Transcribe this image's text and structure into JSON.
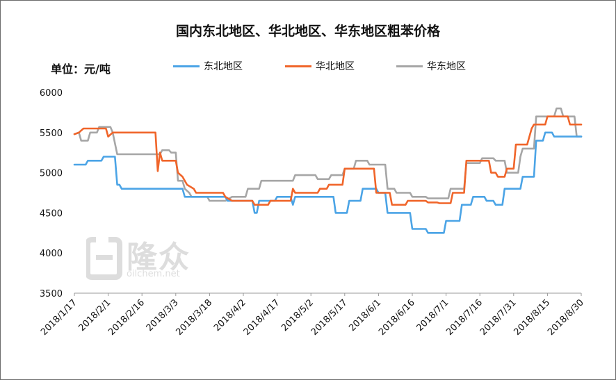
{
  "chart_data": {
    "type": "line",
    "title": "国内东北地区、华北地区、华东地区粗苯价格",
    "unit_label": "单位：元/吨",
    "ylim": [
      3500,
      6000
    ],
    "y_ticks": [
      "6000",
      "5500",
      "5000",
      "4500",
      "4000",
      "3500"
    ],
    "y_tick_values": [
      6000,
      5500,
      5000,
      4500,
      4000,
      3500
    ],
    "grid": false,
    "legend_position": "top",
    "x_start_date": "2018-01-17",
    "x_end_date": "2018-08-30",
    "x_ticks": [
      "2018/1/17",
      "2018/2/1",
      "2018/2/16",
      "2018/3/3",
      "2018/3/18",
      "2018/4/2",
      "2018/4/17",
      "2018/5/2",
      "2018/5/17",
      "2018/6/1",
      "2018/6/16",
      "2018/7/1",
      "2018/7/16",
      "2018/7/31",
      "2018/8/15",
      "2018/8/30"
    ],
    "x_tick_dates": [
      "2018-01-17",
      "2018-02-01",
      "2018-02-16",
      "2018-03-03",
      "2018-03-18",
      "2018-04-02",
      "2018-04-17",
      "2018-05-02",
      "2018-05-17",
      "2018-06-01",
      "2018-06-16",
      "2018-07-01",
      "2018-07-16",
      "2018-07-31",
      "2018-08-15",
      "2018-08-30"
    ],
    "series": [
      {
        "name": "东北地区",
        "color": "#4ba4e6",
        "points": [
          [
            "2018-01-17",
            5100
          ],
          [
            "2018-01-22",
            5100
          ],
          [
            "2018-01-23",
            5150
          ],
          [
            "2018-01-29",
            5150
          ],
          [
            "2018-01-30",
            5200
          ],
          [
            "2018-02-04",
            5200
          ],
          [
            "2018-02-05",
            4850
          ],
          [
            "2018-02-06",
            4850
          ],
          [
            "2018-02-07",
            4800
          ],
          [
            "2018-03-06",
            4800
          ],
          [
            "2018-03-07",
            4700
          ],
          [
            "2018-03-25",
            4700
          ],
          [
            "2018-03-26",
            4650
          ],
          [
            "2018-04-06",
            4650
          ],
          [
            "2018-04-07",
            4500
          ],
          [
            "2018-04-08",
            4500
          ],
          [
            "2018-04-09",
            4650
          ],
          [
            "2018-04-16",
            4650
          ],
          [
            "2018-04-17",
            4700
          ],
          [
            "2018-04-23",
            4700
          ],
          [
            "2018-04-24",
            4600
          ],
          [
            "2018-04-25",
            4700
          ],
          [
            "2018-05-12",
            4700
          ],
          [
            "2018-05-13",
            4500
          ],
          [
            "2018-05-18",
            4500
          ],
          [
            "2018-05-19",
            4650
          ],
          [
            "2018-05-24",
            4650
          ],
          [
            "2018-05-25",
            4800
          ],
          [
            "2018-05-31",
            4800
          ],
          [
            "2018-06-01",
            4750
          ],
          [
            "2018-06-04",
            4750
          ],
          [
            "2018-06-05",
            4500
          ],
          [
            "2018-06-15",
            4500
          ],
          [
            "2018-06-16",
            4300
          ],
          [
            "2018-06-22",
            4300
          ],
          [
            "2018-06-23",
            4250
          ],
          [
            "2018-06-30",
            4250
          ],
          [
            "2018-07-01",
            4400
          ],
          [
            "2018-07-07",
            4400
          ],
          [
            "2018-07-08",
            4600
          ],
          [
            "2018-07-12",
            4600
          ],
          [
            "2018-07-13",
            4700
          ],
          [
            "2018-07-18",
            4700
          ],
          [
            "2018-07-19",
            4650
          ],
          [
            "2018-07-22",
            4650
          ],
          [
            "2018-07-23",
            4600
          ],
          [
            "2018-07-26",
            4600
          ],
          [
            "2018-07-27",
            4800
          ],
          [
            "2018-08-03",
            4800
          ],
          [
            "2018-08-04",
            4950
          ],
          [
            "2018-08-09",
            4950
          ],
          [
            "2018-08-10",
            5400
          ],
          [
            "2018-08-13",
            5400
          ],
          [
            "2018-08-14",
            5500
          ],
          [
            "2018-08-17",
            5500
          ],
          [
            "2018-08-18",
            5450
          ],
          [
            "2018-08-30",
            5450
          ]
        ]
      },
      {
        "name": "华北地区",
        "color": "#f0652a",
        "points": [
          [
            "2018-01-17",
            5480
          ],
          [
            "2018-01-19",
            5500
          ],
          [
            "2018-01-21",
            5550
          ],
          [
            "2018-01-31",
            5550
          ],
          [
            "2018-02-01",
            5450
          ],
          [
            "2018-02-03",
            5500
          ],
          [
            "2018-02-22",
            5500
          ],
          [
            "2018-02-23",
            5020
          ],
          [
            "2018-02-24",
            5250
          ],
          [
            "2018-02-25",
            5150
          ],
          [
            "2018-03-03",
            5150
          ],
          [
            "2018-03-04",
            5000
          ],
          [
            "2018-03-06",
            4950
          ],
          [
            "2018-03-08",
            4850
          ],
          [
            "2018-03-11",
            4800
          ],
          [
            "2018-03-12",
            4750
          ],
          [
            "2018-03-24",
            4750
          ],
          [
            "2018-03-25",
            4700
          ],
          [
            "2018-03-28",
            4650
          ],
          [
            "2018-04-06",
            4650
          ],
          [
            "2018-04-07",
            4600
          ],
          [
            "2018-04-13",
            4600
          ],
          [
            "2018-04-14",
            4650
          ],
          [
            "2018-04-23",
            4650
          ],
          [
            "2018-04-24",
            4800
          ],
          [
            "2018-04-25",
            4750
          ],
          [
            "2018-05-05",
            4750
          ],
          [
            "2018-05-06",
            4800
          ],
          [
            "2018-05-09",
            4800
          ],
          [
            "2018-05-10",
            4850
          ],
          [
            "2018-05-16",
            4850
          ],
          [
            "2018-05-17",
            5050
          ],
          [
            "2018-05-30",
            5050
          ],
          [
            "2018-05-31",
            4750
          ],
          [
            "2018-06-06",
            4750
          ],
          [
            "2018-06-07",
            4600
          ],
          [
            "2018-06-13",
            4600
          ],
          [
            "2018-06-14",
            4650
          ],
          [
            "2018-06-22",
            4650
          ],
          [
            "2018-06-23",
            4630
          ],
          [
            "2018-06-27",
            4630
          ],
          [
            "2018-06-28",
            4620
          ],
          [
            "2018-07-03",
            4620
          ],
          [
            "2018-07-04",
            4750
          ],
          [
            "2018-07-09",
            4750
          ],
          [
            "2018-07-10",
            5150
          ],
          [
            "2018-07-20",
            5150
          ],
          [
            "2018-07-21",
            5000
          ],
          [
            "2018-07-23",
            5000
          ],
          [
            "2018-07-24",
            4950
          ],
          [
            "2018-07-27",
            4950
          ],
          [
            "2018-07-28",
            5050
          ],
          [
            "2018-07-31",
            5050
          ],
          [
            "2018-08-01",
            5350
          ],
          [
            "2018-08-06",
            5350
          ],
          [
            "2018-08-08",
            5550
          ],
          [
            "2018-08-09",
            5600
          ],
          [
            "2018-08-14",
            5600
          ],
          [
            "2018-08-15",
            5700
          ],
          [
            "2018-08-24",
            5700
          ],
          [
            "2018-08-25",
            5600
          ],
          [
            "2018-08-30",
            5600
          ]
        ]
      },
      {
        "name": "华东地区",
        "color": "#a6a6a6",
        "points": [
          [
            "2018-01-17",
            5480
          ],
          [
            "2018-01-19",
            5500
          ],
          [
            "2018-01-20",
            5400
          ],
          [
            "2018-01-23",
            5400
          ],
          [
            "2018-01-24",
            5500
          ],
          [
            "2018-01-27",
            5500
          ],
          [
            "2018-01-28",
            5570
          ],
          [
            "2018-02-02",
            5570
          ],
          [
            "2018-02-03",
            5500
          ],
          [
            "2018-02-05",
            5230
          ],
          [
            "2018-02-24",
            5230
          ],
          [
            "2018-02-25",
            5280
          ],
          [
            "2018-02-28",
            5280
          ],
          [
            "2018-03-01",
            5250
          ],
          [
            "2018-03-03",
            5250
          ],
          [
            "2018-03-04",
            4900
          ],
          [
            "2018-03-06",
            4900
          ],
          [
            "2018-03-07",
            4800
          ],
          [
            "2018-03-09",
            4750
          ],
          [
            "2018-03-10",
            4700
          ],
          [
            "2018-03-17",
            4700
          ],
          [
            "2018-03-18",
            4650
          ],
          [
            "2018-03-25",
            4650
          ],
          [
            "2018-03-28",
            4700
          ],
          [
            "2018-04-03",
            4700
          ],
          [
            "2018-04-04",
            4800
          ],
          [
            "2018-04-09",
            4800
          ],
          [
            "2018-04-10",
            4900
          ],
          [
            "2018-04-24",
            4900
          ],
          [
            "2018-04-25",
            4970
          ],
          [
            "2018-05-04",
            4970
          ],
          [
            "2018-05-05",
            4920
          ],
          [
            "2018-05-10",
            4920
          ],
          [
            "2018-05-11",
            4970
          ],
          [
            "2018-05-16",
            4970
          ],
          [
            "2018-05-17",
            5050
          ],
          [
            "2018-05-21",
            5050
          ],
          [
            "2018-05-22",
            5150
          ],
          [
            "2018-05-27",
            5150
          ],
          [
            "2018-05-28",
            5100
          ],
          [
            "2018-06-04",
            5100
          ],
          [
            "2018-06-05",
            4800
          ],
          [
            "2018-06-08",
            4800
          ],
          [
            "2018-06-09",
            4750
          ],
          [
            "2018-06-15",
            4750
          ],
          [
            "2018-06-16",
            4700
          ],
          [
            "2018-06-22",
            4700
          ],
          [
            "2018-06-23",
            4680
          ],
          [
            "2018-07-02",
            4680
          ],
          [
            "2018-07-03",
            4800
          ],
          [
            "2018-07-09",
            4800
          ],
          [
            "2018-07-10",
            5120
          ],
          [
            "2018-07-16",
            5120
          ],
          [
            "2018-07-17",
            5180
          ],
          [
            "2018-07-22",
            5180
          ],
          [
            "2018-07-23",
            5150
          ],
          [
            "2018-07-27",
            5150
          ],
          [
            "2018-07-28",
            5000
          ],
          [
            "2018-08-02",
            5000
          ],
          [
            "2018-08-03",
            5200
          ],
          [
            "2018-08-04",
            5300
          ],
          [
            "2018-08-09",
            5300
          ],
          [
            "2018-08-10",
            5700
          ],
          [
            "2018-08-18",
            5700
          ],
          [
            "2018-08-19",
            5800
          ],
          [
            "2018-08-21",
            5800
          ],
          [
            "2018-08-22",
            5700
          ],
          [
            "2018-08-27",
            5700
          ],
          [
            "2018-08-28",
            5450
          ],
          [
            "2018-08-30",
            5450
          ]
        ]
      }
    ]
  },
  "watermark": {
    "brand": "隆众",
    "url": "oilchem.net"
  }
}
